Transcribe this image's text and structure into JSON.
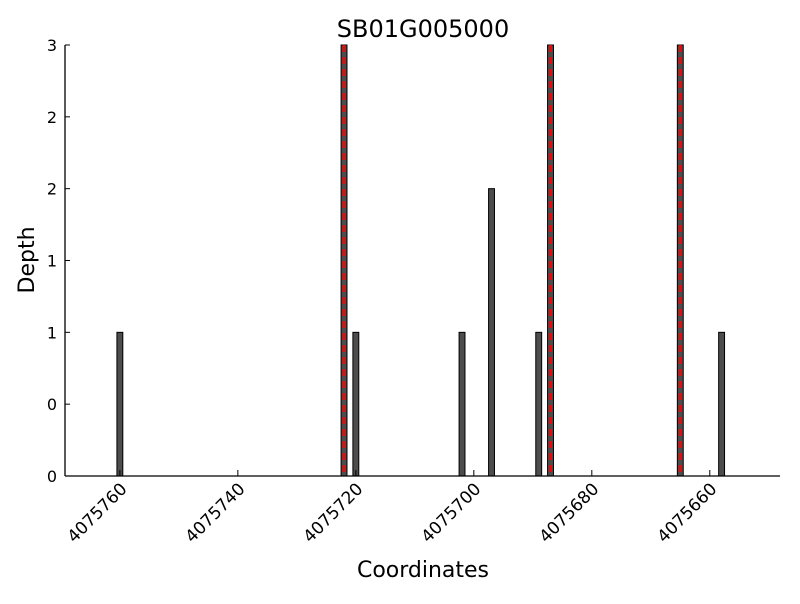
{
  "chart_data": {
    "type": "bar",
    "title": "SB01G005000",
    "xlabel": "Coordinates",
    "ylabel": "Depth",
    "xlim": [
      4075769.3,
      4075648.1
    ],
    "x_reversed": true,
    "ylim": [
      0,
      3
    ],
    "xticks": [
      4075760,
      4075740,
      4075720,
      4075700,
      4075680,
      4075660
    ],
    "xtick_labels": [
      "4075760",
      "4075740",
      "4075720",
      "4075700",
      "4075680",
      "4075660"
    ],
    "yticks": [
      0,
      0.5,
      1,
      1.5,
      2,
      2.5,
      3
    ],
    "ytick_labels": [
      "0",
      "0",
      "1",
      "1",
      "2",
      "2",
      "3"
    ],
    "grid": false,
    "bars": {
      "x": [
        4075760,
        4075722,
        4075720,
        4075702,
        4075697,
        4075689,
        4075687,
        4075665,
        4075658
      ],
      "values": [
        1,
        3,
        1,
        1,
        2,
        1,
        3,
        3,
        1
      ],
      "color": "#4d4d4d"
    },
    "highlight_lines": {
      "x": [
        4075722,
        4075687,
        4075665
      ],
      "color": "#ff0000",
      "style": "dashed"
    }
  }
}
